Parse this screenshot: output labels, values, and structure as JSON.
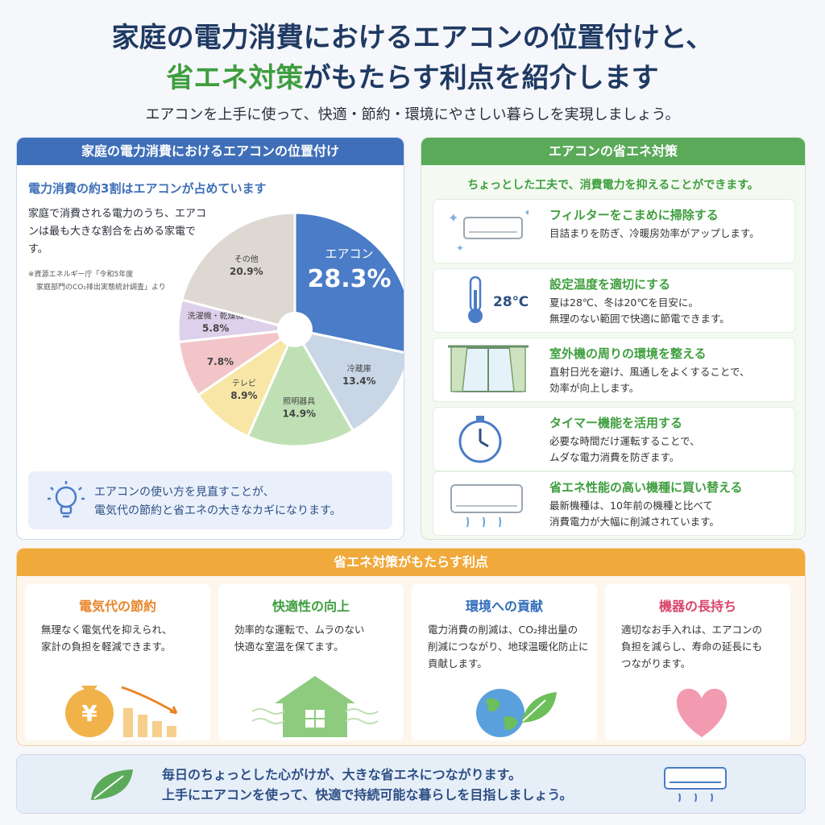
{
  "title": {
    "line1": "家庭の電力消費におけるエアコンの位置付けと、",
    "line2_green": "省エネ対策",
    "line2_rest": "がもたらす利点を紹介します"
  },
  "subtitle": "エアコンを上手に使って、快適・節約・環境にやさしい暮らしを実現しましょう。",
  "left_panel": {
    "header": "家庭の電力消費におけるエアコンの位置付け",
    "lead": "電力消費の約3割はエアコンが占めています",
    "text": "家庭で消費される電力のうち、エアコンは最も大きな割合を占める家電です。",
    "source_line1": "※資源エネルギー庁「令和5年度",
    "source_line2": "家庭部門のCO₂排出実態統計調査」より",
    "tip": "エアコンの使い方を見直すことが、電気代の節約と省エネの大きなカギになります。",
    "tip_line1": "エアコンの使い方を見直すことが、",
    "tip_line2": "電気代の節約と省エネの大きなカギになります。"
  },
  "chart_data": {
    "type": "pie",
    "title": "",
    "slices": [
      {
        "label": "エアコン",
        "value": 28.3,
        "display": "28.3%",
        "color": "#4a7cc7"
      },
      {
        "label": "冷蔵庫",
        "value": 13.4,
        "display": "13.4%",
        "color": "#c9d6e6"
      },
      {
        "label": "照明器具",
        "value": 14.9,
        "display": "14.9%",
        "color": "#bfe0b4"
      },
      {
        "label": "テレビ",
        "value": 8.9,
        "display": "8.9%",
        "color": "#f7e6a6"
      },
      {
        "label": "",
        "value": 7.8,
        "display": "7.8%",
        "color": "#f2c6c9"
      },
      {
        "label": "洗濯機・乾燥機",
        "value": 5.8,
        "display": "5.8%",
        "color": "#ddd0ea"
      },
      {
        "label": "その他",
        "value": 20.9,
        "display": "20.9%",
        "color": "#ddd8d2"
      }
    ]
  },
  "right_panel": {
    "header": "エアコンの省エネ対策",
    "lead": "ちょっとした工夫で、消費電力を抑えることができます。",
    "tips": [
      {
        "title": "フィルターをこまめに掃除する",
        "line1": "目詰まりを防ぎ、冷暖房効率がアップします。",
        "line2": "",
        "icon": "aircon-clean-icon"
      },
      {
        "title": "設定温度を適切にする",
        "line1": "夏は28℃、冬は20℃を目安に。",
        "line2": "無理のない範囲で快適に節電できます。",
        "icon": "thermometer-icon",
        "badge": "28℃"
      },
      {
        "title": "室外機の周りの環境を整える",
        "line1": "直射日光を避け、風通しをよくすることで、",
        "line2": "効率が向上します。",
        "icon": "window-curtain-icon"
      },
      {
        "title": "タイマー機能を活用する",
        "line1": "必要な時間だけ運転することで、",
        "line2": "ムダな電力消費を防ぎます。",
        "icon": "timer-icon"
      },
      {
        "title": "省エネ性能の高い機種に買い替える",
        "line1": "最新機種は、10年前の機種と比べて",
        "line2": "消費電力が大幅に削減されています。",
        "icon": "new-aircon-icon"
      }
    ]
  },
  "benefits": {
    "header": "省エネ対策がもたらす利点",
    "items": [
      {
        "title": "電気代の節約",
        "line1": "無理なく電気代を抑えられ、",
        "line2": "家計の負担を軽減できます。",
        "line3": "",
        "color": "#e8862a",
        "icon": "money-bag-icon",
        "symbol": "¥"
      },
      {
        "title": "快適性の向上",
        "line1": "効率的な運転で、ムラのない",
        "line2": "快適な室温を保てます。",
        "line3": "",
        "color": "#3e9e3e",
        "icon": "house-icon"
      },
      {
        "title": "環境への貢献",
        "line1": "電力消費の削減は、CO₂排出量の",
        "line2": "削減につながり、地球温暖化防止に",
        "line3": "貢献します。",
        "color": "#2e6bb8",
        "icon": "earth-leaf-icon"
      },
      {
        "title": "機器の長持ち",
        "line1": "適切なお手入れは、エアコンの",
        "line2": "負担を減らし、寿命の延長にも",
        "line3": "つながります。",
        "color": "#d9446a",
        "icon": "heart-icon"
      }
    ]
  },
  "footer": {
    "line1": "毎日のちょっとした心がけが、大きな省エネにつながります。",
    "line2": "上手にエアコンを使って、快適で持続可能な暮らしを目指しましょう。"
  }
}
